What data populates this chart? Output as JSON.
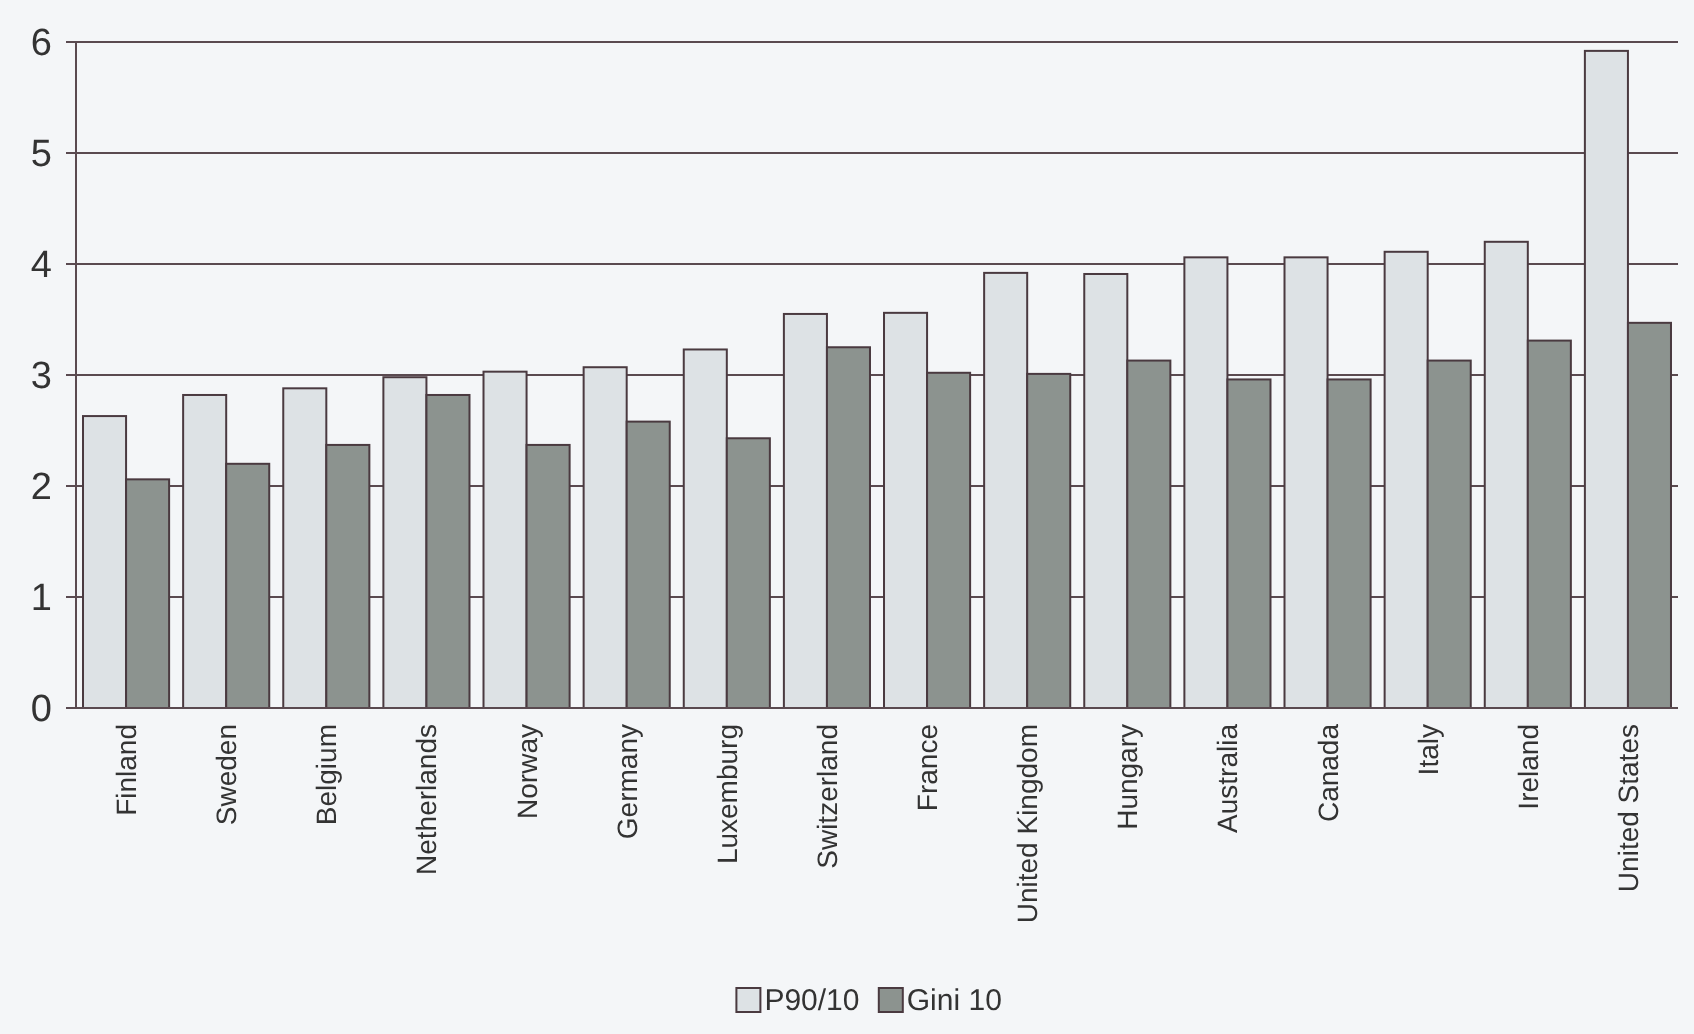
{
  "chart_data": {
    "type": "bar",
    "categories": [
      "Finland",
      "Sweden",
      "Belgium",
      "Netherlands",
      "Norway",
      "Germany",
      "Luxemburg",
      "Switzerland",
      "France",
      "United Kingdom",
      "Hungary",
      "Australia",
      "Canada",
      "Italy",
      "Ireland",
      "United States"
    ],
    "series": [
      {
        "name": "P90/10",
        "color": "#dde2e5",
        "values": [
          2.63,
          2.82,
          2.88,
          2.98,
          3.03,
          3.07,
          3.23,
          3.55,
          3.56,
          3.92,
          3.91,
          4.06,
          4.06,
          4.11,
          4.2,
          5.92
        ]
      },
      {
        "name": "Gini 10",
        "color": "#8c938f",
        "values": [
          2.06,
          2.2,
          2.37,
          2.82,
          2.37,
          2.58,
          2.43,
          3.25,
          3.02,
          3.01,
          3.13,
          2.96,
          2.96,
          3.13,
          3.31,
          3.47
        ]
      }
    ],
    "ylim": [
      0,
      6
    ],
    "yticks": [
      0,
      1,
      2,
      3,
      4,
      5,
      6
    ],
    "grid": "y",
    "legend": "bottom"
  }
}
